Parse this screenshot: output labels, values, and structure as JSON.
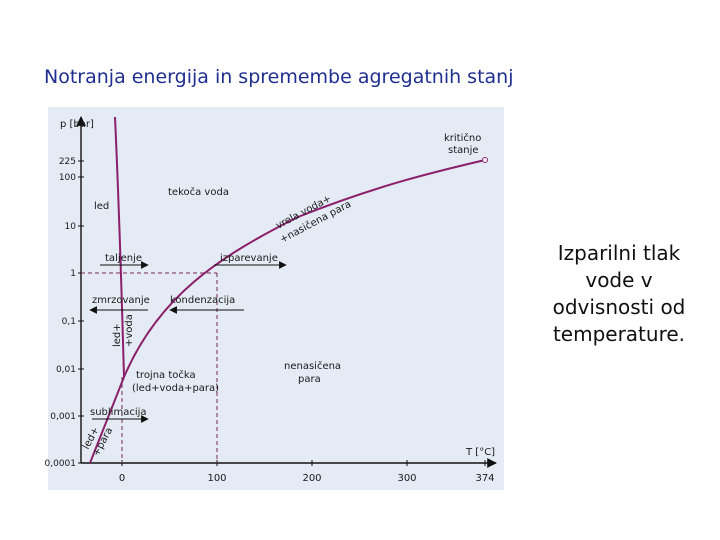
{
  "slide": {
    "title": "Notranja energija in spremembe agregatnih stanj",
    "description_lines": [
      "Izparilni tlak",
      "vode v",
      "odvisnosti od",
      "temperature."
    ]
  },
  "diagram": {
    "y_axis_label": "p [bar]",
    "x_axis_label": "T [°C]",
    "y_ticks": [
      "225",
      "100",
      "10",
      "1",
      "0,1",
      "0,01",
      "0,001",
      "0,0001"
    ],
    "x_ticks": [
      "0",
      "100",
      "200",
      "300",
      "374"
    ],
    "regions": {
      "ice": "led",
      "liquid": "tekoča voda",
      "unsaturated_vapor": [
        "nenasičena",
        "para"
      ]
    },
    "processes": {
      "melting": "taljenje",
      "freezing": "zmrzovanje",
      "evaporation": "izparevanje",
      "condensation": "kondenzacija",
      "sublimation": "sublimacija"
    },
    "curve_labels": {
      "vaporization": [
        "vrela voda+",
        "+nasičena para"
      ],
      "melting": [
        "led+",
        "+voda"
      ],
      "sublimation": [
        "led+",
        "+para"
      ]
    },
    "points": {
      "critical": [
        "kritično",
        "stanje"
      ],
      "triple": [
        "trojna točka",
        "(led+voda+para)"
      ]
    },
    "colors": {
      "curve": "#8b1f6b",
      "background": "#e4ebf4",
      "axes": "#111111",
      "title": "#1f2f8f"
    }
  }
}
